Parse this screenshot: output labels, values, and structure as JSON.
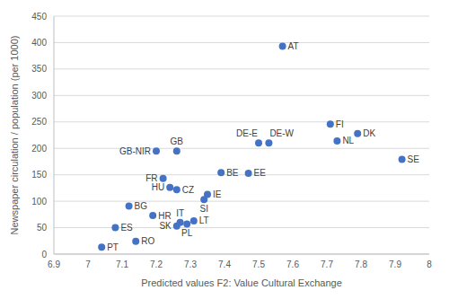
{
  "chart_data": {
    "type": "scatter",
    "x_label": "Predicted values F2: Value Cultural Exchange",
    "y_label": "Newspaper circulation / population (per 1000)",
    "labels": [
      "AT",
      "FI",
      "DK",
      "NL",
      "SE",
      "DE-E",
      "DE-W",
      "GB-NIR",
      "GB",
      "BE",
      "EE",
      "FR",
      "HU",
      "CZ",
      "IE",
      "SI",
      "BG",
      "HR",
      "IT",
      "LT",
      "PL",
      "SK",
      "ES",
      "RO",
      "PT"
    ],
    "x": [
      7.57,
      7.71,
      7.79,
      7.73,
      7.92,
      7.5,
      7.53,
      7.2,
      7.26,
      7.39,
      7.47,
      7.22,
      7.24,
      7.26,
      7.35,
      7.34,
      7.12,
      7.19,
      7.27,
      7.31,
      7.29,
      7.26,
      7.08,
      7.14,
      7.04
    ],
    "values": [
      393,
      246,
      228,
      214,
      179,
      210,
      210,
      195,
      195,
      154,
      153,
      143,
      126,
      122,
      113,
      103,
      91,
      73,
      60,
      63,
      57,
      53,
      50,
      24,
      13
    ],
    "color": "#4472c4",
    "marker": "circle",
    "xlim": [
      6.9,
      8
    ],
    "xticks": [
      6.9,
      7,
      7.1,
      7.2,
      7.3,
      7.4,
      7.5,
      7.6,
      7.7,
      7.8,
      7.9,
      8
    ],
    "ylim": [
      0,
      450
    ],
    "yticks": [
      0,
      50,
      100,
      150,
      200,
      250,
      300,
      350,
      400,
      450
    ],
    "grid": true
  }
}
